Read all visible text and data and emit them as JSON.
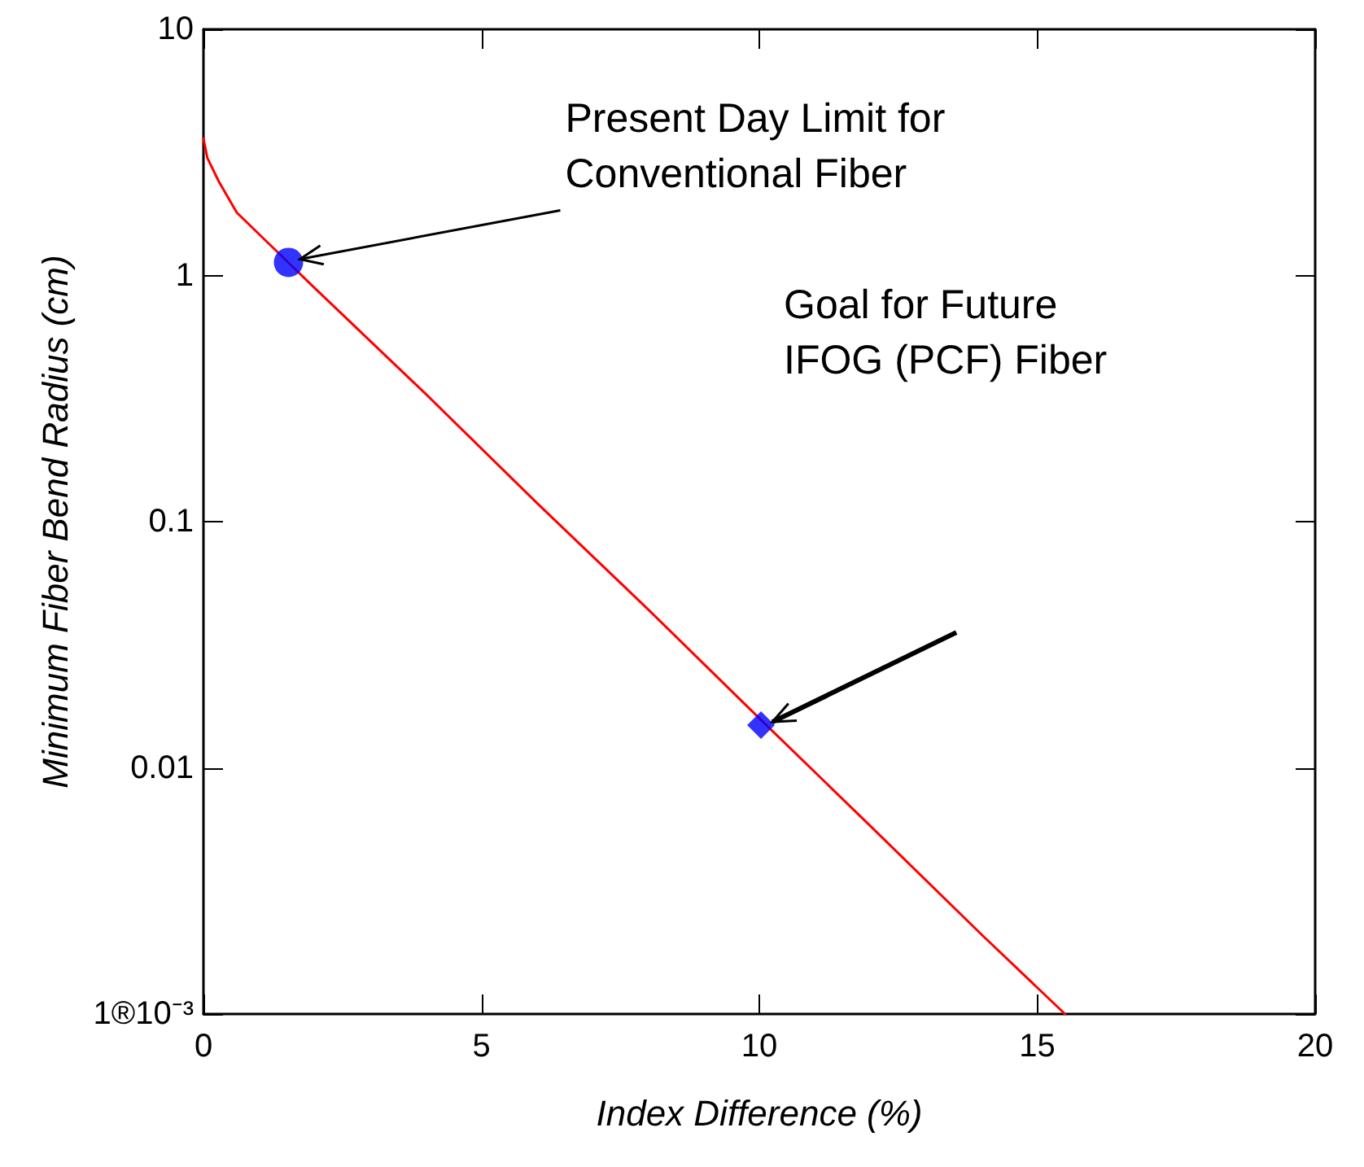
{
  "chart_data": {
    "type": "line",
    "xlabel": "Index Difference (%)",
    "ylabel": "Minimum Fiber Bend Radius (cm)",
    "xlim": [
      0,
      20
    ],
    "xticks": [
      0,
      5,
      10,
      15,
      20
    ],
    "ylim": [
      0.001,
      10
    ],
    "yticks": [
      {
        "value": 0.001,
        "label": "1®10⁻³"
      },
      0.01,
      0.1,
      1,
      10
    ],
    "log": "y",
    "grid": false,
    "series": [
      {
        "color": "#ff0000",
        "marker": "none",
        "line_style": "solid",
        "x": [
          0,
          0.07,
          0.28,
          0.6,
          1.2,
          2,
          4,
          6,
          8,
          10,
          12,
          14,
          15.5
        ],
        "values": [
          3.6,
          3.0,
          2.4,
          1.8,
          1.33,
          0.89,
          0.33,
          0.119,
          0.044,
          0.0159,
          0.0058,
          0.0021,
          0.001
        ]
      },
      {
        "type": "scatter",
        "color": "#0000ff",
        "marker": "circle",
        "x": [
          1.53
        ],
        "values": [
          1.13
        ]
      },
      {
        "type": "scatter",
        "color": "#0000ff",
        "marker": "diamond",
        "x": [
          10.03
        ],
        "values": [
          0.0149
        ]
      }
    ],
    "annotations": [
      {
        "text": "Present Day Limit for\nConventional Fiber",
        "x": 1.53,
        "y": 1.13
      },
      "Goal for Future\nIFOG (PCF) Fiber"
    ]
  }
}
